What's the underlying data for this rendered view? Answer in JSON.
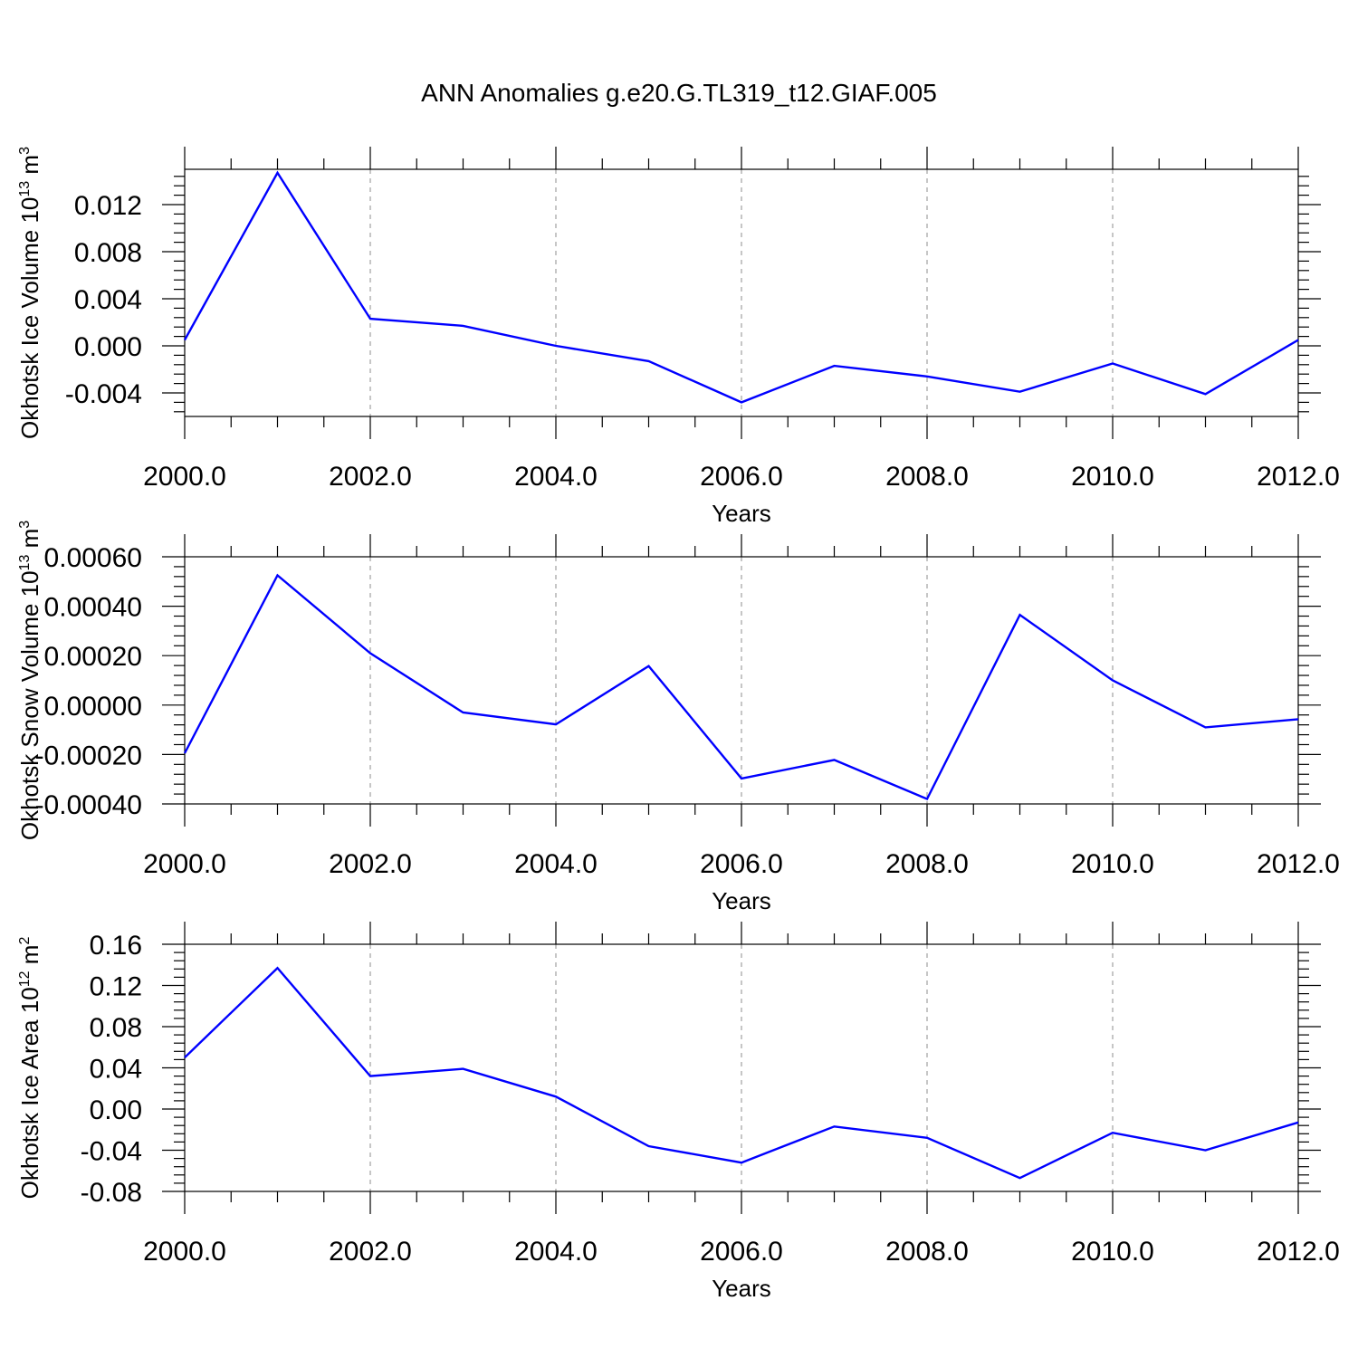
{
  "title": "ANN Anomalies g.e20.G.TL319_t12.GIAF.005",
  "colors": {
    "series": "#0000ff",
    "axis": "#000000",
    "grid": "#a0a0a0",
    "background": "#ffffff"
  },
  "chart_data": [
    {
      "type": "line",
      "xlabel": "Years",
      "ylabel": {
        "text": "Okhotsk Ice Volume 10",
        "exponent": "13",
        "unit": " m",
        "unit_exponent": "3"
      },
      "xlim": [
        2000,
        2012
      ],
      "ylim": [
        -0.006,
        0.015
      ],
      "x_ticks": [
        "2000.0",
        "2002.0",
        "2004.0",
        "2006.0",
        "2008.0",
        "2010.0",
        "2012.0"
      ],
      "y_ticks": [
        "-0.004",
        "0.000",
        "0.004",
        "0.008",
        "0.012"
      ],
      "y_tick_values": [
        -0.004,
        0.0,
        0.004,
        0.008,
        0.012
      ],
      "grid": "vertical dashed at major x ticks",
      "x": [
        2000,
        2001,
        2002,
        2003,
        2004,
        2005,
        2006,
        2007,
        2008,
        2009,
        2010,
        2011,
        2012
      ],
      "values": [
        0.0005,
        0.0147,
        0.0023,
        0.0017,
        0.0,
        -0.0013,
        -0.0048,
        -0.0017,
        -0.0026,
        -0.0039,
        -0.0015,
        -0.0041,
        0.0005
      ]
    },
    {
      "type": "line",
      "xlabel": "Years",
      "ylabel": {
        "text": "Okhotsk Snow Volume 10",
        "exponent": "13",
        "unit": " m",
        "unit_exponent": "3"
      },
      "xlim": [
        2000,
        2012
      ],
      "ylim": [
        -0.0004,
        0.0006
      ],
      "x_ticks": [
        "2000.0",
        "2002.0",
        "2004.0",
        "2006.0",
        "2008.0",
        "2010.0",
        "2012.0"
      ],
      "y_ticks": [
        "-0.00040",
        "-0.00020",
        "0.00000",
        "0.00020",
        "0.00040",
        "0.00060"
      ],
      "y_tick_values": [
        -0.0004,
        -0.0002,
        0.0,
        0.0002,
        0.0004,
        0.0006
      ],
      "grid": "vertical dashed at major x ticks",
      "x": [
        2000,
        2001,
        2002,
        2003,
        2004,
        2005,
        2006,
        2007,
        2008,
        2009,
        2010,
        2011,
        2012
      ],
      "values": [
        -0.000195,
        0.000525,
        0.00021,
        -3e-05,
        -7.8e-05,
        0.000158,
        -0.000297,
        -0.000222,
        -0.00038,
        0.000365,
        0.0001,
        -9e-05,
        -5.7e-05
      ]
    },
    {
      "type": "line",
      "xlabel": "Years",
      "ylabel": {
        "text": "Okhotsk Ice Area 10",
        "exponent": "12",
        "unit": " m",
        "unit_exponent": "2"
      },
      "xlim": [
        2000,
        2012
      ],
      "ylim": [
        -0.08,
        0.16
      ],
      "x_ticks": [
        "2000.0",
        "2002.0",
        "2004.0",
        "2006.0",
        "2008.0",
        "2010.0",
        "2012.0"
      ],
      "y_ticks": [
        "-0.08",
        "-0.04",
        "0.00",
        "0.04",
        "0.08",
        "0.12",
        "0.16"
      ],
      "y_tick_values": [
        -0.08,
        -0.04,
        0.0,
        0.04,
        0.08,
        0.12,
        0.16
      ],
      "grid": "vertical dashed at major x ticks",
      "x": [
        2000,
        2001,
        2002,
        2003,
        2004,
        2005,
        2006,
        2007,
        2008,
        2009,
        2010,
        2011,
        2012
      ],
      "values": [
        0.05,
        0.137,
        0.032,
        0.039,
        0.012,
        -0.036,
        -0.052,
        -0.017,
        -0.028,
        -0.067,
        -0.023,
        -0.04,
        -0.013
      ]
    }
  ]
}
